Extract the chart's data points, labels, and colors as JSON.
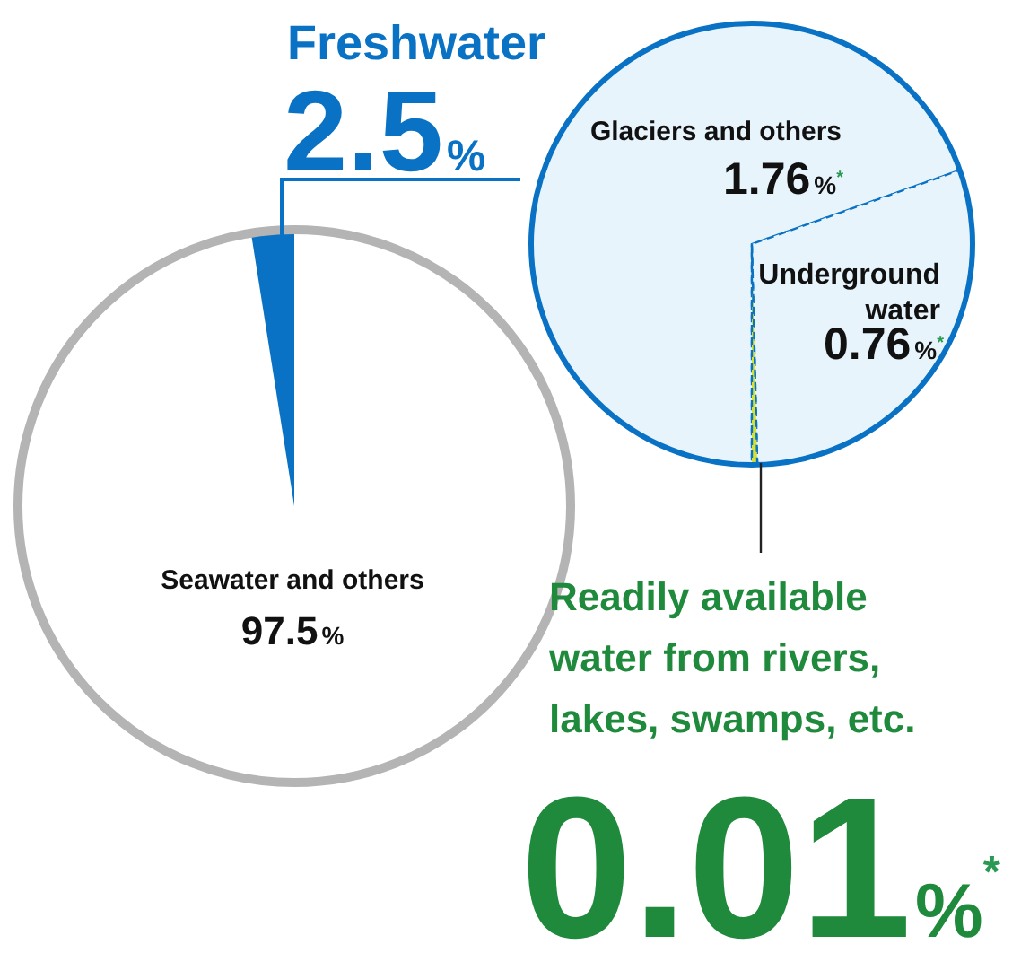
{
  "chart_data": [
    {
      "type": "pie",
      "categories": [
        "Seawater and others",
        "Freshwater"
      ],
      "values": [
        97.5,
        2.5
      ],
      "value_labels": [
        "97.5%",
        "2.5%"
      ],
      "colors": [
        "#ffffff",
        "#0a72c4"
      ]
    },
    {
      "type": "pie",
      "categories": [
        "Glaciers and others",
        "Underground water",
        "Readily available water from rivers, lakes, swamps, etc."
      ],
      "values": [
        1.76,
        0.76,
        0.01
      ],
      "value_labels": [
        "1.76%$^{*}$",
        "0.76%$^{*}$",
        "0.01%$^{*}$"
      ],
      "colors": [
        "#e8f4fc",
        "#e8f4fc",
        "#d8e030"
      ]
    }
  ]
}
